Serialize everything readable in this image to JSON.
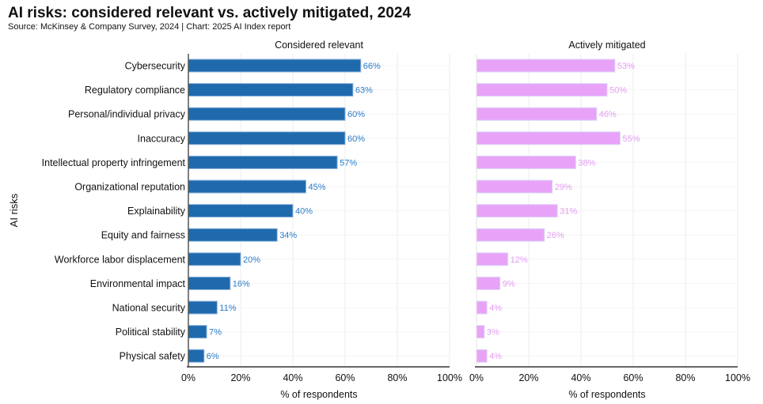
{
  "title": "AI risks: considered relevant vs. actively mitigated, 2024",
  "subtitle": "Source: McKinsey & Company Survey, 2024 | Chart: 2025 AI Index report",
  "chart_data": {
    "type": "bar",
    "orientation": "horizontal",
    "ylabel": "AI risks",
    "categories": [
      "Cybersecurity",
      "Regulatory compliance",
      "Personal/individual privacy",
      "Inaccuracy",
      "Intellectual property infringement",
      "Organizational reputation",
      "Explainability",
      "Equity and fairness",
      "Workforce labor displacement",
      "Environmental impact",
      "National security",
      "Political stability",
      "Physical safety"
    ],
    "panels": [
      {
        "title": "Considered relevant",
        "xlabel": "% of respondents",
        "color": "#1f6aad",
        "label_color": "#2a7bc9",
        "values": [
          66,
          63,
          60,
          60,
          57,
          45,
          40,
          34,
          20,
          16,
          11,
          7,
          6
        ]
      },
      {
        "title": "Actively mitigated",
        "xlabel": "% of respondents",
        "color": "#e8a3f8",
        "label_color": "#e49cf2",
        "values": [
          53,
          50,
          46,
          55,
          38,
          29,
          31,
          26,
          12,
          9,
          4,
          3,
          4
        ]
      }
    ],
    "xlim": [
      0,
      100
    ],
    "xticks": [
      "0%",
      "20%",
      "40%",
      "60%",
      "80%",
      "100%"
    ],
    "grid": true
  }
}
